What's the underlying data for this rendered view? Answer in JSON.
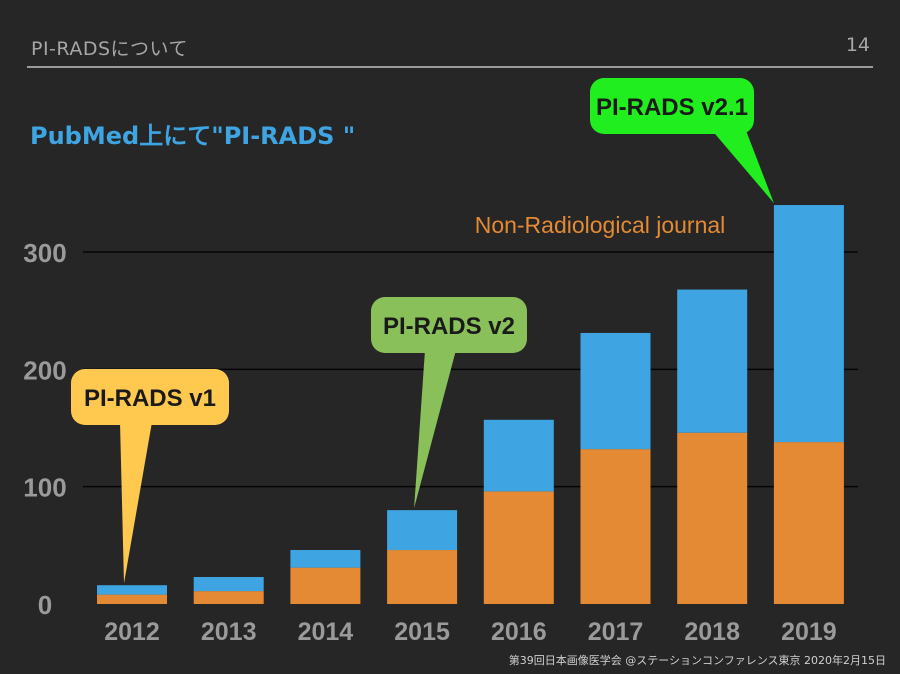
{
  "slide": {
    "header_title": "PI-RADSについて",
    "page_number": "14",
    "footer": "第39回日本画像医学会 @ステーションコンファレンス東京  2020年2月15日"
  },
  "colors": {
    "background": "#262626",
    "orange": "#e48a34",
    "blue": "#3ea5e2",
    "v1": "#ffc94f",
    "v2": "#8ac05a",
    "v21": "#21ee1f"
  },
  "chart_data": {
    "type": "bar",
    "stacked": true,
    "subtitle": "PubMed上にて\"PI-RADS \"",
    "categories": [
      "2012",
      "2013",
      "2014",
      "2015",
      "2016",
      "2017",
      "2018",
      "2019"
    ],
    "series": [
      {
        "name": "Non-Radiological journal",
        "color": "#e48a34",
        "values": [
          8,
          11,
          31,
          46,
          96,
          132,
          146,
          138
        ]
      },
      {
        "name": "",
        "color": "#3ea5e2",
        "values": [
          8,
          12,
          15,
          34,
          61,
          99,
          122,
          202
        ]
      }
    ],
    "y_ticks": [
      0,
      100,
      200,
      300
    ],
    "ylim": [
      0,
      340
    ],
    "grid": true,
    "annotations": [
      {
        "text": "PI-RADS v1",
        "category": "2012",
        "color": "#ffc94f"
      },
      {
        "text": "PI-RADS v2",
        "category": "2015",
        "color": "#8ac05a"
      },
      {
        "text": "PI-RADS v2.1",
        "category": "2019",
        "color": "#21ee1f"
      }
    ]
  }
}
